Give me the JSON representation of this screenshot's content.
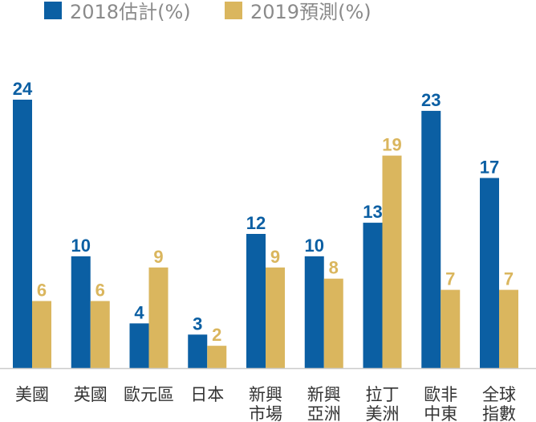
{
  "chart_data": {
    "type": "bar",
    "categories": [
      [
        "美國"
      ],
      [
        "英國"
      ],
      [
        "歐元區"
      ],
      [
        "日本"
      ],
      [
        "新興",
        "市場"
      ],
      [
        "新興",
        "亞洲"
      ],
      [
        "拉丁",
        "美洲"
      ],
      [
        "歐非",
        "中東"
      ],
      [
        "全球",
        "指數"
      ]
    ],
    "series": [
      {
        "name": "2018估計(%)",
        "color": "#0b5fa3",
        "values": [
          24,
          10,
          4,
          3,
          12,
          10,
          13,
          23,
          17
        ]
      },
      {
        "name": "2019預測(%)",
        "color": "#dab65e",
        "values": [
          6,
          6,
          9,
          2,
          9,
          8,
          19,
          7,
          7
        ]
      }
    ],
    "title": "",
    "xlabel": "",
    "ylabel": "",
    "ylim": [
      0,
      24
    ],
    "grid": false,
    "legend": "top-left",
    "value_labels": true
  }
}
